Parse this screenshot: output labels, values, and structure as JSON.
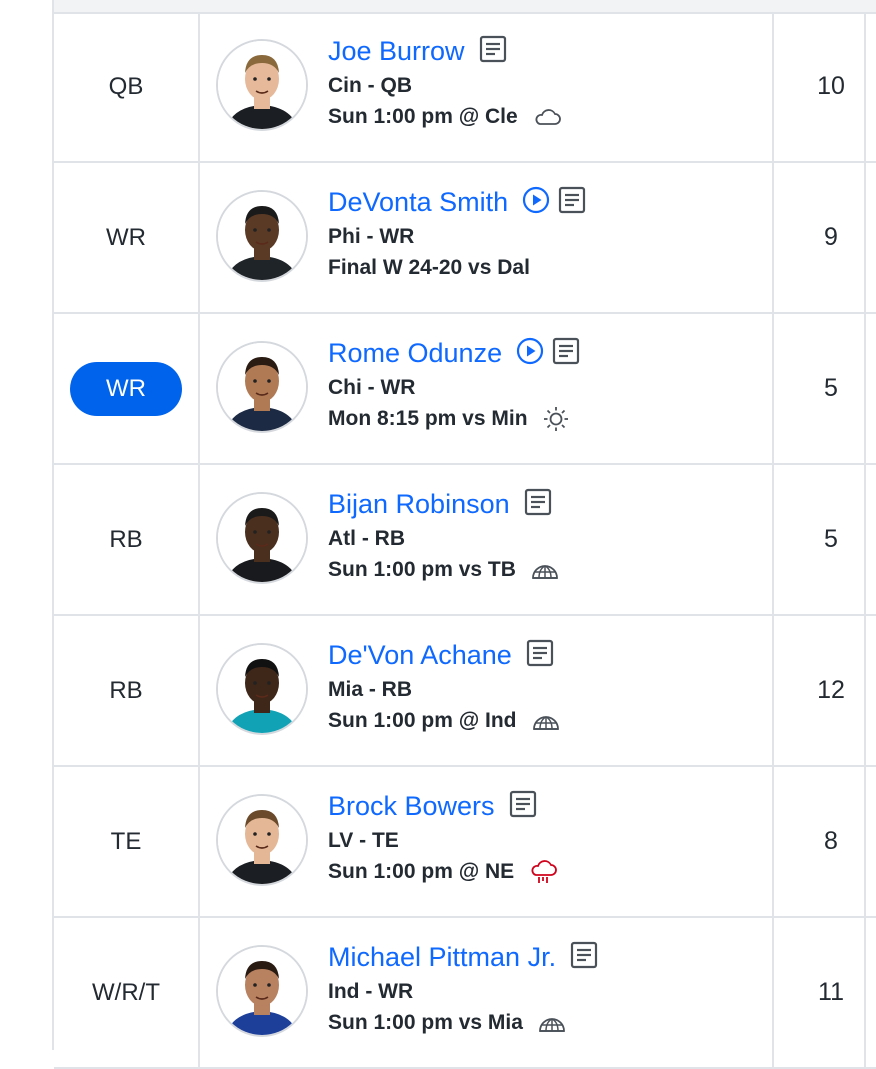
{
  "players": [
    {
      "slot": "QB",
      "active": false,
      "name": "Joe Burrow",
      "team": "Cin - QB",
      "game": "Sun 1:00 pm @ Cle",
      "weather": "cloud-icon",
      "video": false,
      "value": "10",
      "skin": "#e6b99a",
      "hair": "#8a6a3c",
      "jersey": "#1b1e22"
    },
    {
      "slot": "WR",
      "active": false,
      "name": "DeVonta Smith",
      "team": "Phi - WR",
      "game": "Final W 24-20 vs Dal",
      "weather": "",
      "video": true,
      "value": "9",
      "skin": "#5a3a25",
      "hair": "#1a1a1a",
      "jersey": "#1f2428"
    },
    {
      "slot": "WR",
      "active": true,
      "name": "Rome Odunze",
      "team": "Chi - WR",
      "game": "Mon 8:15 pm vs Min",
      "weather": "sun-icon",
      "video": true,
      "value": "5",
      "skin": "#b07a55",
      "hair": "#2a1c12",
      "jersey": "#1c2a44"
    },
    {
      "slot": "RB",
      "active": false,
      "name": "Bijan Robinson",
      "team": "Atl - RB",
      "game": "Sun 1:00 pm vs TB",
      "weather": "dome-icon",
      "video": false,
      "value": "5",
      "skin": "#4a2e1e",
      "hair": "#1a1a1a",
      "jersey": "#181a1d"
    },
    {
      "slot": "RB",
      "active": false,
      "name": "De'Von Achane",
      "team": "Mia - RB",
      "game": "Sun 1:00 pm @ Ind",
      "weather": "dome-icon",
      "video": false,
      "value": "12",
      "skin": "#3e2619",
      "hair": "#111",
      "jersey": "#12a2b5"
    },
    {
      "slot": "TE",
      "active": false,
      "name": "Brock Bowers",
      "team": "LV - TE",
      "game": "Sun 1:00 pm @ NE",
      "weather": "rain-icon",
      "video": false,
      "value": "8",
      "skin": "#e4b897",
      "hair": "#6a4a2a",
      "jersey": "#1b1e22"
    },
    {
      "slot": "W/R/T",
      "active": false,
      "name": "Michael Pittman Jr.",
      "team": "Ind - WR",
      "game": "Sun 1:00 pm vs Mia",
      "weather": "dome-icon",
      "video": false,
      "value": "11",
      "skin": "#b88160",
      "hair": "#2a1b12",
      "jersey": "#1d3f9a"
    }
  ],
  "colors": {
    "link": "#0f69ff",
    "accent": "#0063eb",
    "rain": "#d0021b",
    "icon": "#4a5158"
  }
}
